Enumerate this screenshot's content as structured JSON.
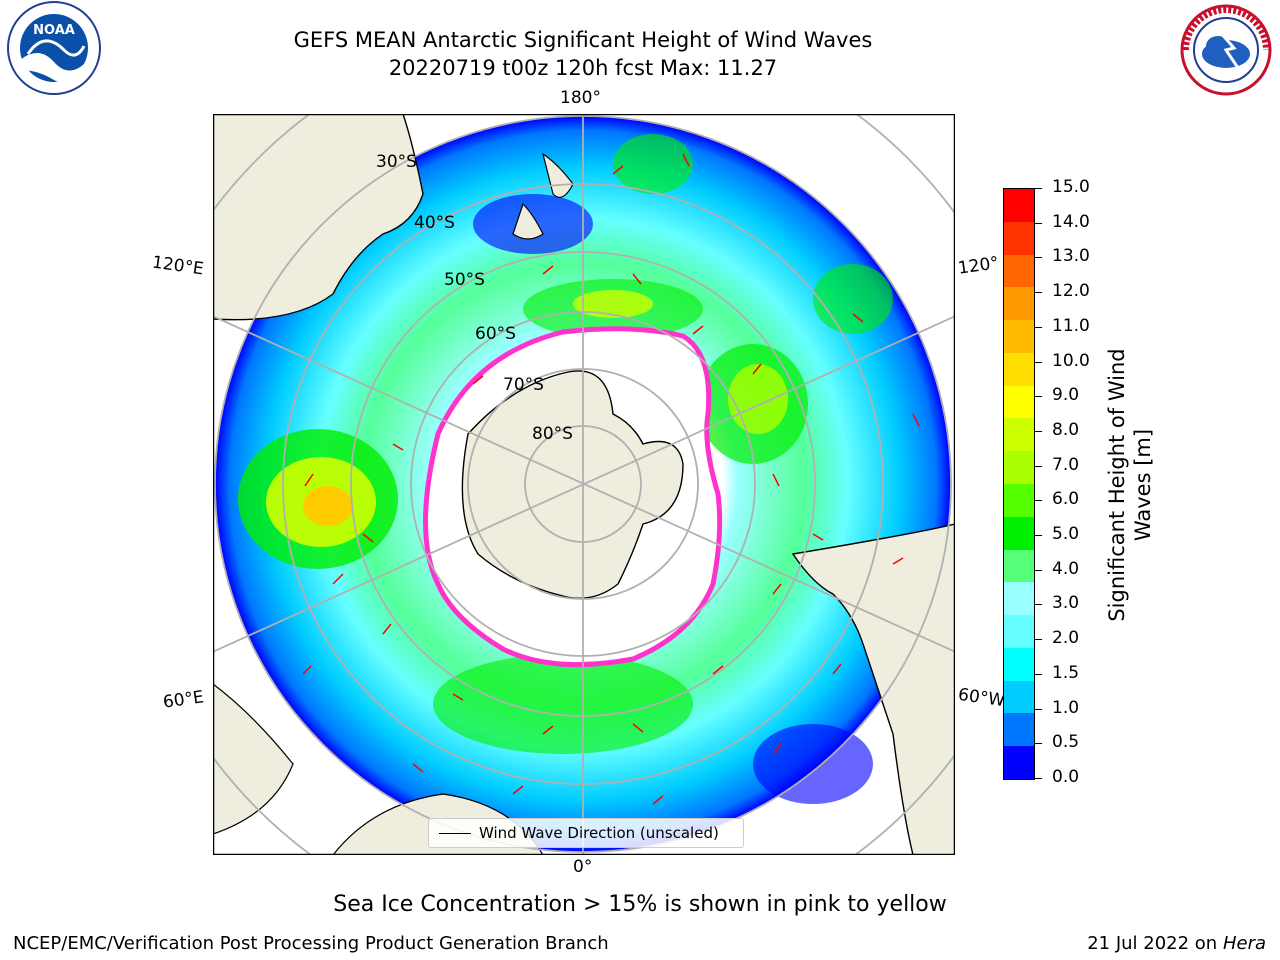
{
  "header": {
    "title_line1": "GEFS MEAN Antarctic Significant Height of Wind Waves",
    "title_line2": "20220719 t00z 120h fcst   Max: 11.27"
  },
  "logos": {
    "left": "noara-logo",
    "left_text": "NOAA",
    "right": "nws-logo",
    "right_text": "NATIONAL WEATHER SERVICE"
  },
  "map": {
    "projection": "south-polar-stereographic",
    "longitude_labels": {
      "top": "180°",
      "bottom": "0°",
      "left_upper": "120°E",
      "left_lower": "60°E",
      "right_upper": "120°",
      "right_lower": "60°W"
    },
    "latitude_labels": [
      "30°S",
      "40°S",
      "50°S",
      "60°S",
      "70°S",
      "80°S"
    ],
    "legend_label": "Wind Wave Direction (unscaled)"
  },
  "colorbar": {
    "title": "Significant Height of Wind Waves [m]",
    "ticks": [
      "15.0",
      "14.0",
      "13.0",
      "12.0",
      "11.0",
      "10.0",
      "9.0",
      "8.0",
      "7.0",
      "6.0",
      "5.0",
      "4.0",
      "3.0",
      "2.0",
      "1.5",
      "1.0",
      "0.5",
      "0.0"
    ],
    "colors": [
      "#0000ff",
      "#0077ff",
      "#00ccff",
      "#00ffff",
      "#66ffff",
      "#99ffff",
      "#55ff77",
      "#00ee00",
      "#55ff00",
      "#aaff00",
      "#ccff00",
      "#ffff00",
      "#ffdd00",
      "#ffbb00",
      "#ff9900",
      "#ff6600",
      "#ff3300",
      "#ff0000"
    ]
  },
  "footer": {
    "note": "Sea Ice Concentration > 15% is shown in pink to yellow",
    "left": "NCEP/EMC/Verification Post Processing Product Generation Branch",
    "right_prefix": "21 Jul 2022 on ",
    "right_machine": "Hera"
  }
}
